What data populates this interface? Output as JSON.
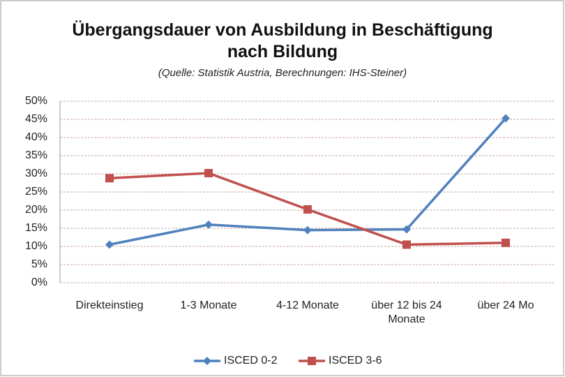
{
  "chart_data": {
    "type": "line",
    "title": "Übergangsdauer von Ausbildung in Beschäftigung nach Bildung",
    "subtitle": "(Quelle: Statistik Austria, Berechnungen: IHS-Steiner)",
    "categories": [
      "Direkteinstieg",
      "1-3 Monate",
      "4-12 Monate",
      "über 12 bis 24 Monate",
      "über 24 Mo"
    ],
    "series": [
      {
        "name": "ISCED 0-2",
        "color": "#4f81bd",
        "values": [
          10.5,
          16,
          14.5,
          14.7,
          45.3
        ]
      },
      {
        "name": "ISCED 3-6",
        "color": "#c0504d",
        "values": [
          28.8,
          30.2,
          20.2,
          10.5,
          11
        ]
      }
    ],
    "ylim": [
      0,
      50
    ],
    "yticks": [
      {
        "value": 0,
        "label": "0%"
      },
      {
        "value": 5,
        "label": "5%"
      },
      {
        "value": 10,
        "label": "10%"
      },
      {
        "value": 15,
        "label": "15%"
      },
      {
        "value": 20,
        "label": "20%"
      },
      {
        "value": 25,
        "label": "25%"
      },
      {
        "value": 30,
        "label": "30%"
      },
      {
        "value": 35,
        "label": "35%"
      },
      {
        "value": 40,
        "label": "40%"
      },
      {
        "value": 45,
        "label": "45%"
      },
      {
        "value": 50,
        "label": "50%"
      }
    ],
    "grid": true,
    "legend": "bottom"
  }
}
